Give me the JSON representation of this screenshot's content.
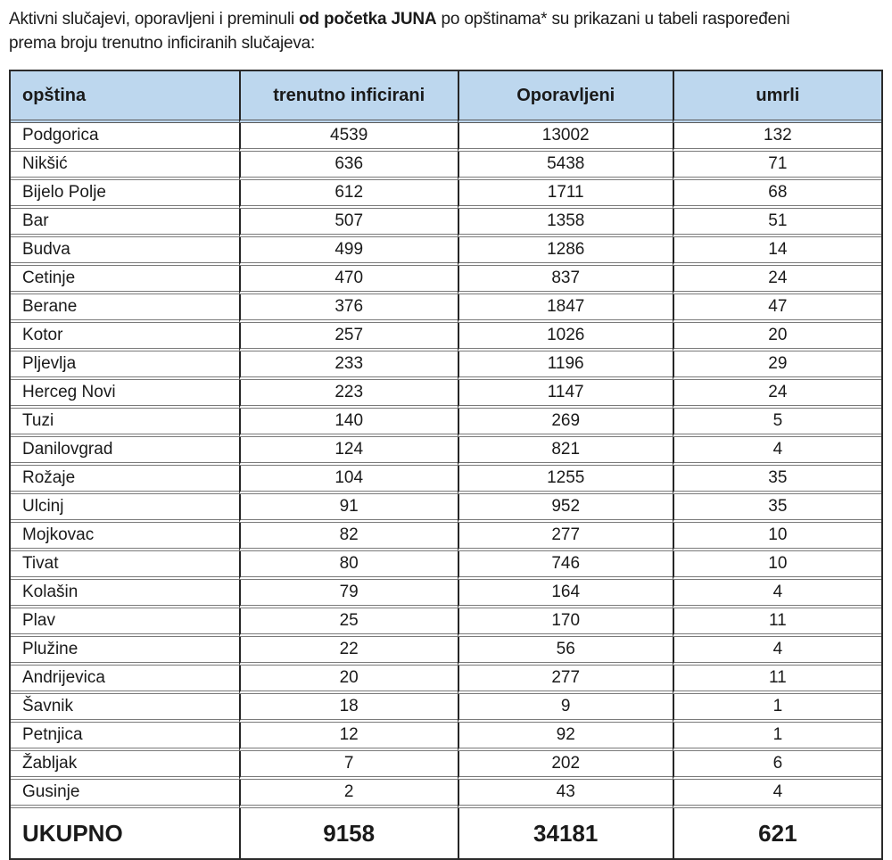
{
  "intro": {
    "part1": "Aktivni slučajevi, oporavljeni i preminuli ",
    "bold": "od početka JUNA",
    "part2": " po opštinama* su prikazani u tabeli raspoređeni prema broju trenutno inficiranih slučajeva:"
  },
  "table": {
    "columns": [
      "opština",
      "trenutno inficirani",
      "Oporavljeni",
      "umrli"
    ],
    "rows": [
      [
        "Podgorica",
        "4539",
        "13002",
        "132"
      ],
      [
        "Nikšić",
        "636",
        "5438",
        "71"
      ],
      [
        "Bijelo Polje",
        "612",
        "1711",
        "68"
      ],
      [
        "Bar",
        "507",
        "1358",
        "51"
      ],
      [
        "Budva",
        "499",
        "1286",
        "14"
      ],
      [
        "Cetinje",
        "470",
        "837",
        "24"
      ],
      [
        "Berane",
        "376",
        "1847",
        "47"
      ],
      [
        "Kotor",
        "257",
        "1026",
        "20"
      ],
      [
        "Pljevlja",
        "233",
        "1196",
        "29"
      ],
      [
        "Herceg Novi",
        "223",
        "1147",
        "24"
      ],
      [
        "Tuzi",
        "140",
        "269",
        "5"
      ],
      [
        "Danilovgrad",
        "124",
        "821",
        "4"
      ],
      [
        "Rožaje",
        "104",
        "1255",
        "35"
      ],
      [
        "Ulcinj",
        "91",
        "952",
        "35"
      ],
      [
        "Mojkovac",
        "82",
        "277",
        "10"
      ],
      [
        "Tivat",
        "80",
        "746",
        "10"
      ],
      [
        "Kolašin",
        "79",
        "164",
        "4"
      ],
      [
        "Plav",
        "25",
        "170",
        "11"
      ],
      [
        "Plužine",
        "22",
        "56",
        "4"
      ],
      [
        "Andrijevica",
        "20",
        "277",
        "11"
      ],
      [
        "Šavnik",
        "18",
        "9",
        "1"
      ],
      [
        "Petnjica",
        "12",
        "92",
        "1"
      ],
      [
        "Žabljak",
        "7",
        "202",
        "6"
      ],
      [
        "Gusinje",
        "2",
        "43",
        "4"
      ]
    ],
    "total": [
      "UKUPNO",
      "9158",
      "34181",
      "621"
    ]
  },
  "colors": {
    "header_background": "#bdd7ee",
    "outer_frame": "#2b2b2b",
    "row_separator": "#7a7a7a"
  }
}
